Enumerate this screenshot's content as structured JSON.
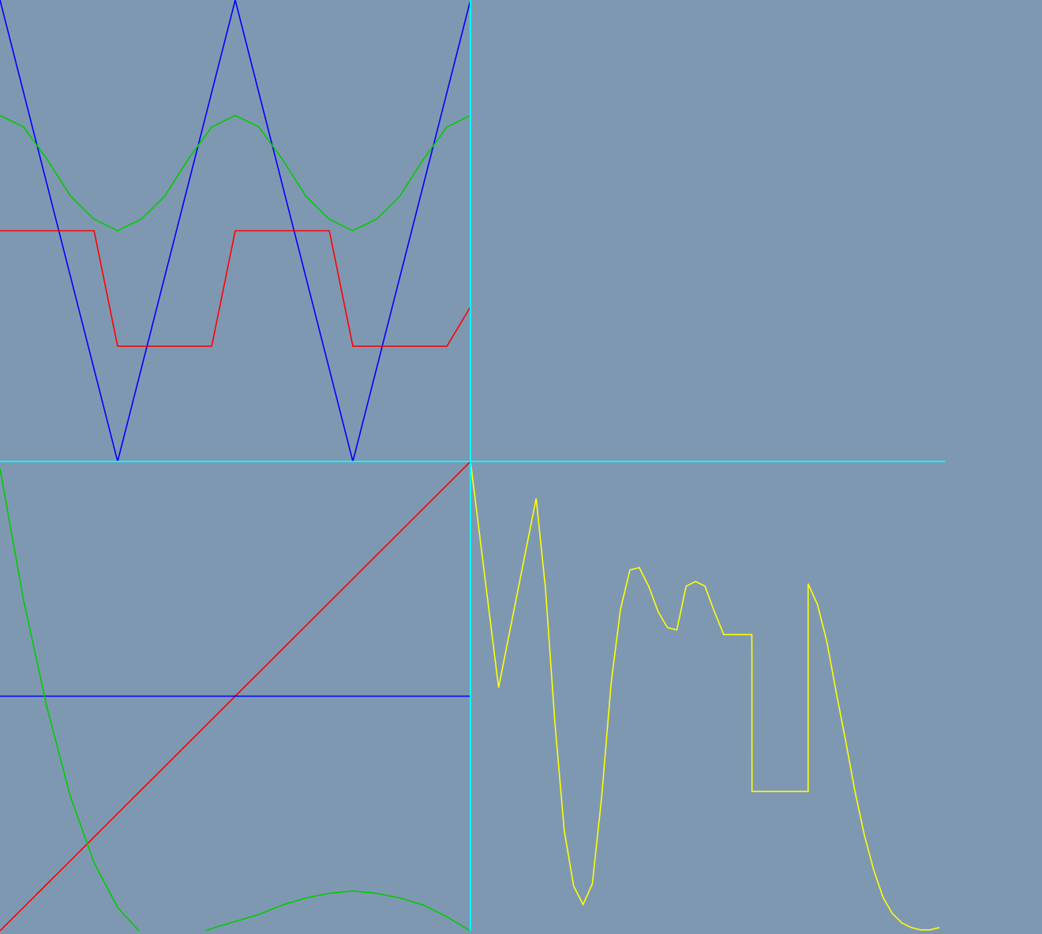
{
  "background_color": "#7f98b2",
  "divider_color": "#00ffff",
  "chart_data": [
    {
      "panel": "top-left",
      "type": "line",
      "title": "",
      "xlabel": "",
      "ylabel": "",
      "xlim": [
        0,
        2
      ],
      "ylim": [
        -1,
        1
      ],
      "x": [
        0,
        0.1,
        0.2,
        0.3,
        0.4,
        0.5,
        0.6,
        0.7,
        0.8,
        0.9,
        1.0,
        1.1,
        1.2,
        1.3,
        1.4,
        1.5,
        1.6,
        1.7,
        1.8,
        1.9,
        2.0
      ],
      "series": [
        {
          "color": "#0000ff",
          "values": [
            1.0,
            0.6,
            0.2,
            -0.2,
            -0.6,
            -1.0,
            -0.6,
            -0.2,
            0.2,
            0.6,
            1.0,
            0.6,
            0.2,
            -0.2,
            -0.6,
            -1.0,
            -0.6,
            -0.2,
            0.2,
            0.6,
            1.0
          ]
        },
        {
          "color": "#00cc00",
          "values": [
            0.5,
            0.45,
            0.31,
            0.15,
            0.05,
            0.0,
            0.05,
            0.15,
            0.31,
            0.45,
            0.5,
            0.45,
            0.31,
            0.15,
            0.05,
            0.0,
            0.05,
            0.15,
            0.31,
            0.45,
            0.5
          ]
        },
        {
          "color": "#ff0000",
          "values": [
            0.0,
            0.0,
            0.0,
            0.0,
            0.0,
            -0.5,
            -0.5,
            -0.5,
            -0.5,
            -0.5,
            0.0,
            0.0,
            0.0,
            0.0,
            0.0,
            -0.5,
            -0.5,
            -0.5,
            -0.5,
            -0.5,
            -0.33
          ]
        }
      ]
    },
    {
      "panel": "bottom-left",
      "type": "line",
      "title": "",
      "xlabel": "",
      "ylabel": "",
      "xlim": [
        0,
        1
      ],
      "ylim": [
        -1,
        1
      ],
      "x": [
        0,
        0.05,
        0.1,
        0.15,
        0.2,
        0.25,
        0.3,
        0.35,
        0.4,
        0.45,
        0.5,
        0.55,
        0.6,
        0.65,
        0.7,
        0.75,
        0.8,
        0.85,
        0.9,
        0.95,
        1.0
      ],
      "series": [
        {
          "color": "#ff0000",
          "values": [
            -1.0,
            -0.9,
            -0.8,
            -0.7,
            -0.6,
            -0.5,
            -0.4,
            -0.3,
            -0.2,
            -0.1,
            0.0,
            0.1,
            0.2,
            0.3,
            0.4,
            0.5,
            0.6,
            0.7,
            0.8,
            0.9,
            1.0
          ]
        },
        {
          "color": "#0000ff",
          "values": [
            0,
            0,
            0,
            0,
            0,
            0,
            0,
            0,
            0,
            0,
            0,
            0,
            0,
            0,
            0,
            0,
            0,
            0,
            0,
            0,
            0
          ]
        },
        {
          "color": "#00cc00",
          "values": [
            0.97,
            0.41,
            -0.05,
            -0.43,
            -0.71,
            -0.9,
            -1.01,
            -1.04,
            -1.03,
            -0.99,
            -0.96,
            -0.93,
            -0.89,
            -0.86,
            -0.84,
            -0.83,
            -0.84,
            -0.86,
            -0.89,
            -0.94,
            -1.0
          ]
        }
      ]
    },
    {
      "panel": "bottom-right",
      "type": "line",
      "title": "",
      "xlabel": "",
      "ylabel": "",
      "xlim": [
        0,
        1
      ],
      "ylim": [
        -1,
        1
      ],
      "x": [
        0,
        0.06,
        0.14,
        0.16,
        0.18,
        0.2,
        0.22,
        0.24,
        0.26,
        0.28,
        0.3,
        0.32,
        0.34,
        0.36,
        0.38,
        0.4,
        0.42,
        0.44,
        0.46,
        0.48,
        0.5,
        0.52,
        0.54,
        0.6,
        0.6001,
        0.6003,
        0.72,
        0.7201,
        0.74,
        0.76,
        0.78,
        0.8,
        0.82,
        0.84,
        0.86,
        0.88,
        0.9,
        0.92,
        0.94,
        0.96,
        0.98,
        1.0
      ],
      "series": [
        {
          "color": "#ffff00",
          "values": [
            1.0,
            0.02,
            0.84,
            0.45,
            -0.13,
            -0.6,
            -0.84,
            -0.92,
            -0.83,
            -0.45,
            0.04,
            0.36,
            0.53,
            0.54,
            0.46,
            0.35,
            0.28,
            0.27,
            0.46,
            0.48,
            0.46,
            0.35,
            0.25,
            0.25,
            0.18,
            -0.43,
            -0.43,
            0.47,
            0.38,
            0.22,
            0.0,
            -0.21,
            -0.43,
            -0.62,
            -0.77,
            -0.89,
            -0.96,
            -1.0,
            -1.02,
            -1.03,
            -1.03,
            -1.02
          ]
        }
      ]
    }
  ]
}
